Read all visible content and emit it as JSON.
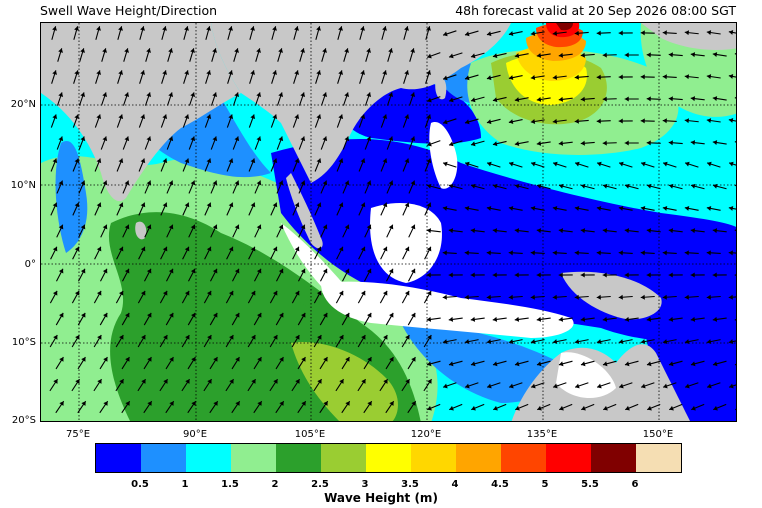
{
  "header": {
    "title": "Swell Wave Height/Direction",
    "valid_time": "48h forecast valid at 20 Sep 2026 08:00 SGT"
  },
  "map": {
    "lat_labels": [
      "20°N",
      "10°N",
      "0°",
      "10°S",
      "20°S"
    ],
    "lon_labels": [
      "75°E",
      "90°E",
      "105°E",
      "120°E",
      "135°E",
      "150°E"
    ],
    "colors": {
      "land": "#c8c8c8",
      "white_area": "#ffffff",
      "arrow": "#000000"
    }
  },
  "colorbar": {
    "title": "Wave Height (m)",
    "ticks": [
      "0.5",
      "1",
      "1.5",
      "2",
      "2.5",
      "3",
      "3.5",
      "4",
      "4.5",
      "5",
      "5.5",
      "6"
    ],
    "colors": [
      "#0000ff",
      "#1e90ff",
      "#00ffff",
      "#90ee90",
      "#2ca02c",
      "#9acd32",
      "#ffff00",
      "#ffd700",
      "#ffa500",
      "#ff4500",
      "#ff0000",
      "#800000",
      "#f5deb3"
    ]
  }
}
